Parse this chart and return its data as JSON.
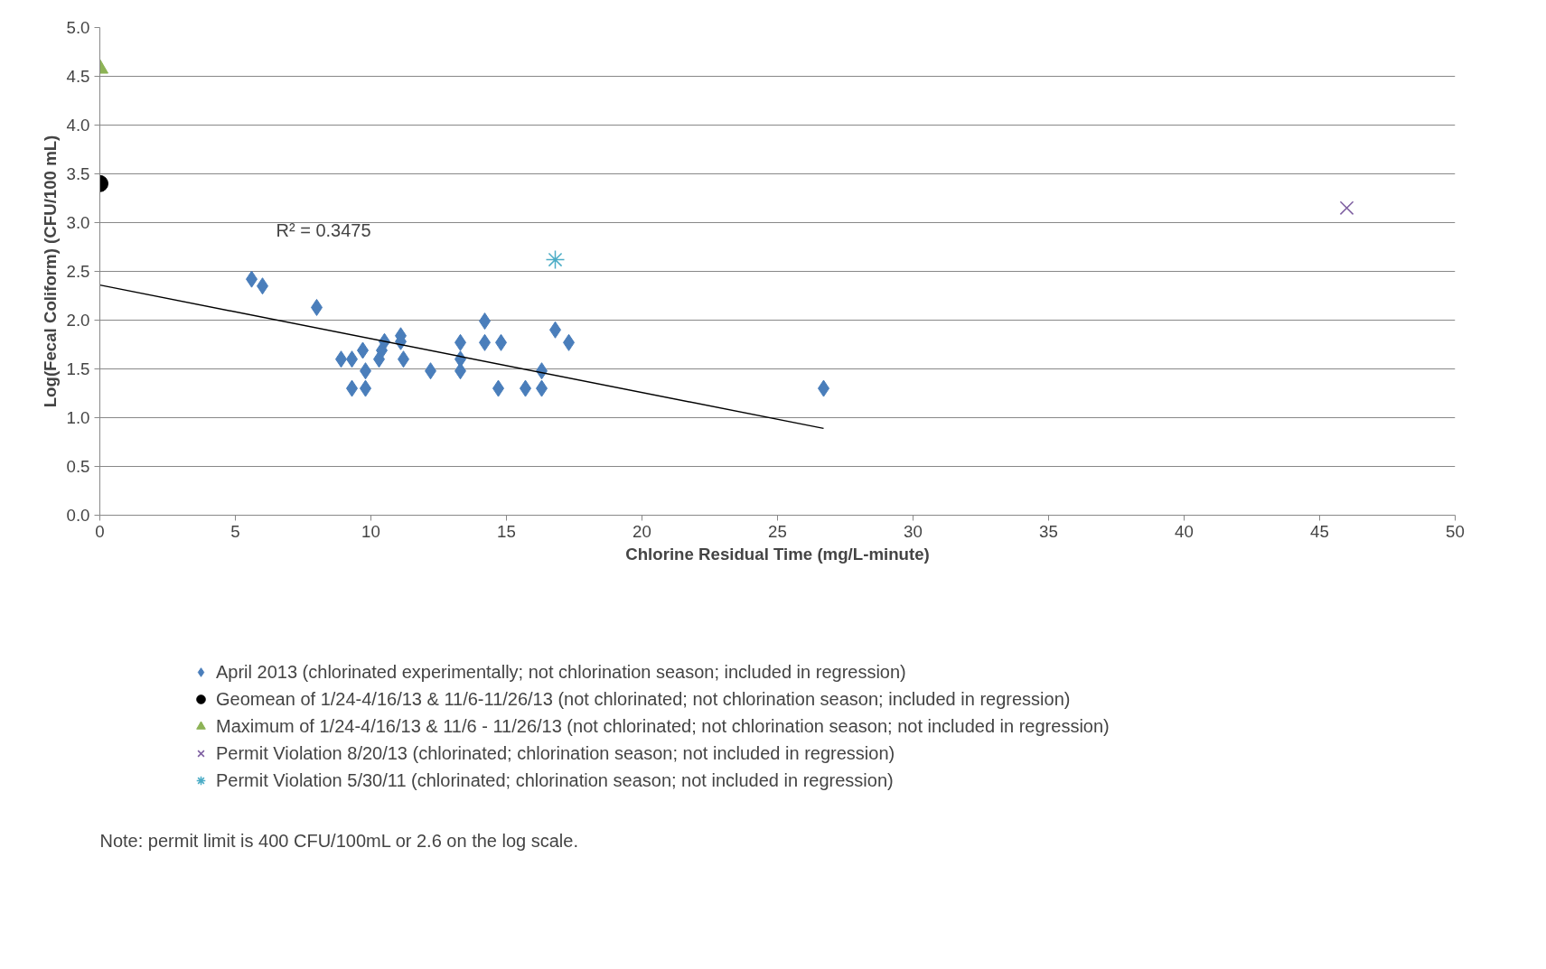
{
  "chart_data": {
    "type": "scatter",
    "xlabel": "Chlorine Residual Time (mg/L-minute)",
    "ylabel": "Log(Fecal Coliform) (CFU/100 mL)",
    "xlim": [
      0,
      50
    ],
    "xticks": [
      0,
      5,
      10,
      15,
      20,
      25,
      30,
      35,
      40,
      45,
      50
    ],
    "ylim": [
      0,
      5
    ],
    "yticks": [
      {
        "value": 0,
        "label": "0.0"
      },
      {
        "value": 0.5,
        "label": "0.5"
      },
      {
        "value": 1,
        "label": "1.0"
      },
      {
        "value": 1.5,
        "label": "1.5"
      },
      {
        "value": 2,
        "label": "2.0"
      },
      {
        "value": 2.5,
        "label": "2.5"
      },
      {
        "value": 3,
        "label": "3.0"
      },
      {
        "value": 3.5,
        "label": "3.5"
      },
      {
        "value": 4,
        "label": "4.0"
      },
      {
        "value": 4.5,
        "label": "4.5"
      },
      {
        "value": 5,
        "label": "5.0"
      }
    ],
    "grid": "y",
    "legend": "bottom",
    "series": [
      {
        "name": "April 2013 (chlorinated experimentally; not chlorination season; included in regression)",
        "color": "#4a7ebb",
        "marker": "diamond",
        "x": [
          5.6,
          6.0,
          8.0,
          8.9,
          9.3,
          9.3,
          9.7,
          9.8,
          9.8,
          10.3,
          10.4,
          10.5,
          11.1,
          11.1,
          11.2,
          12.2,
          13.3,
          13.3,
          13.3,
          14.2,
          14.2,
          14.8,
          14.7,
          15.7,
          16.3,
          16.3,
          16.8,
          17.3,
          26.7
        ],
        "values": [
          2.42,
          2.35,
          2.13,
          1.6,
          1.6,
          1.3,
          1.69,
          1.3,
          1.48,
          1.6,
          1.69,
          1.78,
          1.84,
          1.78,
          1.6,
          1.48,
          1.77,
          1.6,
          1.48,
          1.99,
          1.77,
          1.77,
          1.3,
          1.3,
          1.48,
          1.3,
          1.9,
          1.77,
          1.3
        ]
      },
      {
        "name": "Geomean of 1/24-4/16/13 & 11/6-11/26/13 (not chlorinated; not chlorination season; included in regression)",
        "color": "#000000",
        "marker": "circle",
        "x": [
          0
        ],
        "values": [
          3.4
        ]
      },
      {
        "name": "Maximum of 1/24-4/16/13 & 11/6 - 11/26/13 (not chlorinated; not chlorination season; not included in regression)",
        "color": "#8db356",
        "marker": "triangle",
        "x": [
          0
        ],
        "values": [
          4.58
        ]
      },
      {
        "name": "Permit Violation 8/20/13 (chlorinated; chlorination season; not included in regression)",
        "color": "#7e5fa1",
        "marker": "cross",
        "x": [
          46.0
        ],
        "values": [
          3.15
        ]
      },
      {
        "name": "Permit Violation 5/30/11 (chlorinated; chlorination season; not included in regression)",
        "color": "#4bacc6",
        "x": [
          16.8
        ],
        "values": [
          2.62
        ]
      },
      {
        "type": "line",
        "color": "#000000",
        "marker": "none",
        "line_style": "solid",
        "x": [
          0,
          26.7
        ],
        "values": [
          2.36,
          0.89
        ]
      }
    ],
    "annotations": [
      "R² = 0.3475",
      "Note: permit limit is 400 CFU/100mL or 2.6 on the log scale."
    ]
  }
}
